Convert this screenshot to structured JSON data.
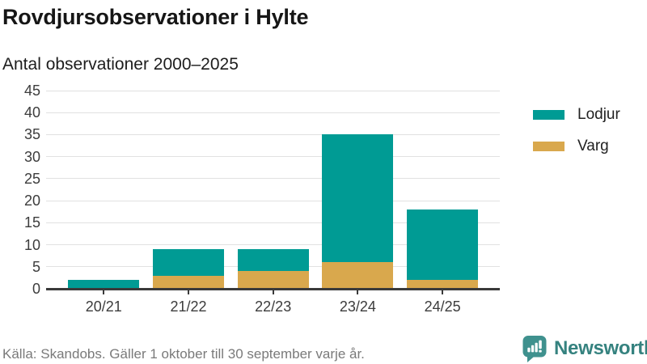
{
  "header": {
    "title": "Rovdjursobservationer i Hylte",
    "subtitle": "Antal observationer 2000–2025"
  },
  "chart_data": {
    "type": "bar",
    "stacked": true,
    "title": "Rovdjursobservationer i Hylte",
    "subtitle": "Antal observationer 2000–2025",
    "categories": [
      "20/21",
      "21/22",
      "22/23",
      "23/24",
      "24/25"
    ],
    "series": [
      {
        "name": "Lodjur",
        "color": "#009b94",
        "values": [
          2,
          6,
          5,
          29,
          16
        ]
      },
      {
        "name": "Varg",
        "color": "#d9a84d",
        "values": [
          0,
          3,
          4,
          6,
          2
        ]
      }
    ],
    "stack_order_bottom_to_top": [
      "Varg",
      "Lodjur"
    ],
    "totals": [
      2,
      9,
      9,
      35,
      18
    ],
    "xlabel": "",
    "ylabel": "",
    "ylim": [
      0,
      45
    ],
    "yticks": [
      0,
      5,
      10,
      15,
      20,
      25,
      30,
      35,
      40,
      45
    ],
    "grid": true,
    "legend_position": "right"
  },
  "legend": {
    "items": [
      {
        "label": "Lodjur",
        "color": "#009b94"
      },
      {
        "label": "Varg",
        "color": "#d9a84d"
      }
    ]
  },
  "footer": {
    "source": "Källa: Skandobs. Gäller 1 oktober till 30 september varje år.",
    "brand": "Newsworthy"
  },
  "colors": {
    "lodjur": "#009b94",
    "varg": "#d9a84d",
    "gridline": "#e1e1e1",
    "axis": "#3a3a3a",
    "brand_teal": "#3f918e",
    "brand_text": "#35827f",
    "source_text": "#7a7a7a"
  }
}
